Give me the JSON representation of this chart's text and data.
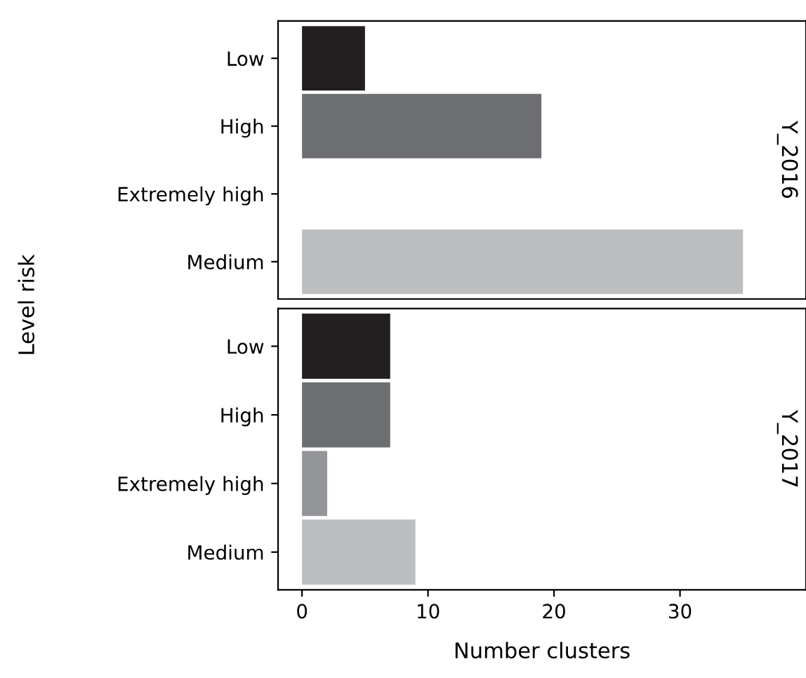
{
  "chart_data": [
    {
      "type": "bar",
      "orientation": "horizontal",
      "title": "Y_2016",
      "ylabel": "Level risk",
      "categories": [
        "Low",
        "High",
        "Extremely high",
        "Medium"
      ],
      "values": [
        5,
        19,
        0,
        35
      ],
      "colors": [
        "#231f20",
        "#6d6e71",
        "#939598",
        "#bcbec0"
      ],
      "xlim": [
        -1.9,
        40
      ],
      "xticks": [
        0,
        10,
        20,
        30
      ],
      "tick_labels": "y",
      "grid": false
    },
    {
      "type": "bar",
      "orientation": "horizontal",
      "title": "Y_2017",
      "xlabel": "Number clusters",
      "categories": [
        "Low",
        "High",
        "Extremely high",
        "Medium"
      ],
      "values": [
        7,
        7,
        2,
        9
      ],
      "colors": [
        "#231f20",
        "#6d6e71",
        "#939598",
        "#bcbec0"
      ],
      "xlim": [
        -1.9,
        40
      ],
      "xticks": [
        0,
        10,
        20,
        30
      ],
      "grid": false
    }
  ]
}
